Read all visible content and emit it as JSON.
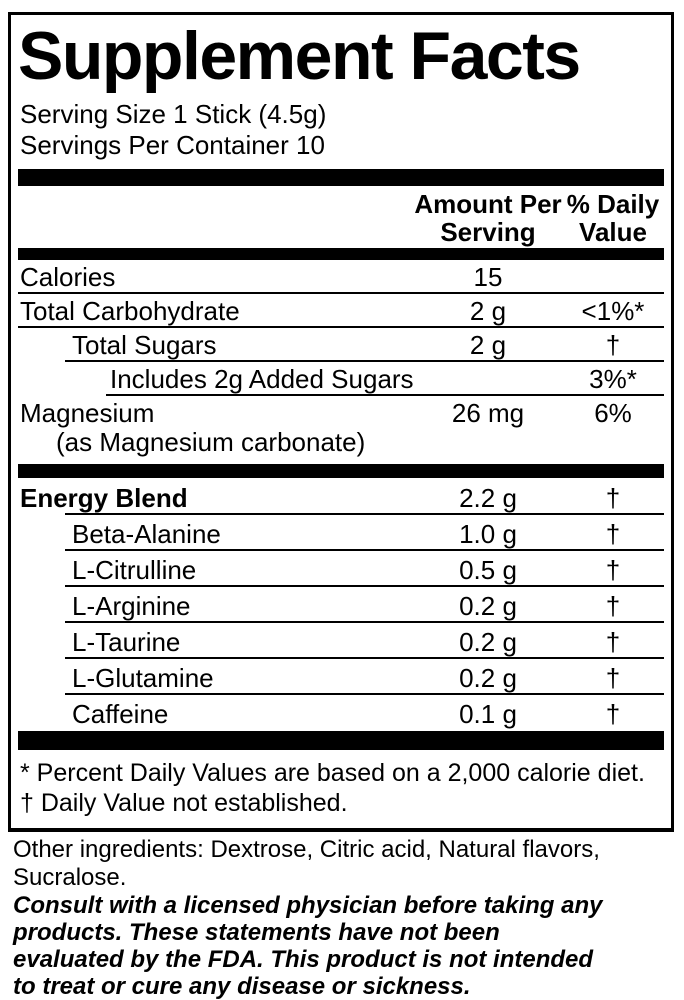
{
  "label": {
    "title": "Supplement Facts",
    "serving_size": "Serving Size 1 Stick (4.5g)",
    "servings_per_container": "Servings Per Container 10",
    "columns": {
      "amount": "Amount Per Serving",
      "daily_value": "% Daily Value"
    },
    "main_rows": [
      {
        "name": "Calories",
        "amount": "15",
        "dv": "",
        "indent": 0,
        "bold": false,
        "sep": "full"
      },
      {
        "name": "Total Carbohydrate",
        "amount": "2 g",
        "dv": "<1%*",
        "indent": 0,
        "bold": false,
        "sep": "full"
      },
      {
        "name": "Total Sugars",
        "amount": "2 g",
        "dv": "†",
        "indent": 1,
        "bold": false,
        "sep": "l1"
      },
      {
        "name": "Includes 2g Added Sugars",
        "amount": "",
        "dv": "3%*",
        "indent": 2,
        "bold": false,
        "sep": "l2"
      },
      {
        "name": "Magnesium",
        "name2": "(as Magnesium carbonate)",
        "amount": "26 mg",
        "dv": "6%",
        "indent": 0,
        "bold": false,
        "sep": "none"
      }
    ],
    "blend_rows": [
      {
        "name": "Energy Blend",
        "amount": "2.2 g",
        "dv": "†",
        "indent": 0,
        "bold": true,
        "sep": "l1"
      },
      {
        "name": "Beta-Alanine",
        "amount": "1.0 g",
        "dv": "†",
        "indent": 1,
        "bold": false,
        "sep": "l1"
      },
      {
        "name": "L-Citrulline",
        "amount": "0.5 g",
        "dv": "†",
        "indent": 1,
        "bold": false,
        "sep": "l1"
      },
      {
        "name": "L-Arginine",
        "amount": "0.2 g",
        "dv": "†",
        "indent": 1,
        "bold": false,
        "sep": "l1"
      },
      {
        "name": "L-Taurine",
        "amount": "0.2 g",
        "dv": "†",
        "indent": 1,
        "bold": false,
        "sep": "l1"
      },
      {
        "name": "L-Glutamine",
        "amount": "0.2 g",
        "dv": "†",
        "indent": 1,
        "bold": false,
        "sep": "l1"
      },
      {
        "name": "Caffeine",
        "amount": "0.1 g",
        "dv": "†",
        "indent": 1,
        "bold": false,
        "sep": "none"
      }
    ],
    "footnotes": [
      "* Percent Daily Values are based on a 2,000 calorie diet.",
      "† Daily Value not established."
    ]
  },
  "outside": {
    "other_ingredients_lines": [
      "Other ingredients: Dextrose, Citric acid, Natural flavors,",
      "Sucralose."
    ],
    "disclaimer_lines": [
      "Consult with a licensed physician before taking any",
      "products. These statements have not been",
      "evaluated by the FDA. This product is not intended",
      "to treat or cure any disease or sickness."
    ]
  },
  "colors": {
    "ink": "#000000",
    "paper": "#ffffff"
  }
}
